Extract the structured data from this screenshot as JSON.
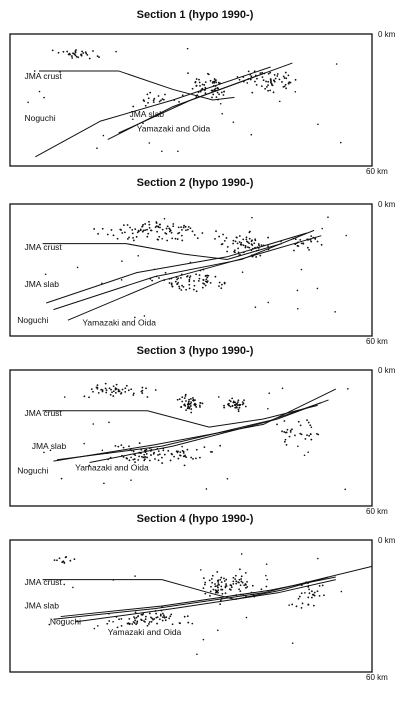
{
  "sections": [
    {
      "title": "Section 1 (hypo 1990-)",
      "top_label": "0 km",
      "bottom_label": "60 km",
      "labels": [
        "JMA crust",
        "Noguchi",
        "JMA slab",
        "Yamazaki and Oida"
      ]
    },
    {
      "title": "Section 2 (hypo 1990-)",
      "top_label": "0 km",
      "bottom_label": "60 km",
      "labels": [
        "JMA crust",
        "JMA slab",
        "Noguchi",
        "Yamazaki and Oida"
      ]
    },
    {
      "title": "Section 3 (hypo 1990-)",
      "top_label": "0 km",
      "bottom_label": "60 km",
      "labels": [
        "JMA crust",
        "JMA slab",
        "Noguchi",
        "Yamazaki and Oida"
      ]
    },
    {
      "title": "Section 4 (hypo 1990-)",
      "top_label": "0 km",
      "bottom_label": "60 km",
      "labels": [
        "JMA crust",
        "JMA slab",
        "Noguchi",
        "Yamazaki and Oida"
      ]
    }
  ]
}
